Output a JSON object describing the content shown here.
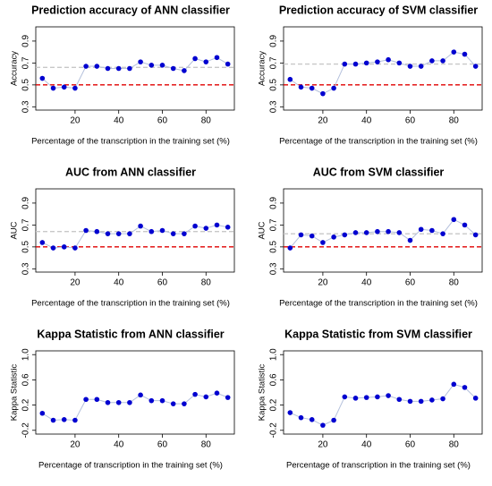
{
  "chart_data": [
    {
      "type": "line",
      "title": "Prediction accuracy of ANN classifier",
      "xlabel": "Percentage of the transcription in the training set (%)",
      "ylabel": "Accuracy",
      "x": [
        5,
        10,
        15,
        20,
        25,
        30,
        35,
        40,
        45,
        50,
        55,
        60,
        65,
        70,
        75,
        80,
        85,
        90
      ],
      "series": [
        {
          "color": "#0000d0",
          "values": [
            0.56,
            0.47,
            0.48,
            0.47,
            0.67,
            0.67,
            0.65,
            0.65,
            0.65,
            0.71,
            0.68,
            0.68,
            0.65,
            0.63,
            0.74,
            0.71,
            0.75,
            0.69
          ]
        }
      ],
      "xlim": [
        2,
        93
      ],
      "xticks": [
        20,
        40,
        60,
        80
      ],
      "ylim": [
        0.27,
        1.03
      ],
      "yticks": [
        0.3,
        0.5,
        0.7,
        0.9
      ],
      "hlines": [
        {
          "value": 0.66,
          "color": "#c8c8c8"
        },
        {
          "value": 0.5,
          "color": "#e00000"
        }
      ]
    },
    {
      "type": "line",
      "title": "Prediction accuracy of SVM classifier",
      "xlabel": "Percentage of the transcription in the training set (%)",
      "ylabel": "Accuracy",
      "x": [
        5,
        10,
        15,
        20,
        25,
        30,
        35,
        40,
        45,
        50,
        55,
        60,
        65,
        70,
        75,
        80,
        85,
        90
      ],
      "series": [
        {
          "color": "#0000d0",
          "values": [
            0.55,
            0.48,
            0.47,
            0.42,
            0.47,
            0.69,
            0.69,
            0.7,
            0.71,
            0.73,
            0.7,
            0.67,
            0.67,
            0.72,
            0.72,
            0.8,
            0.78,
            0.67
          ]
        }
      ],
      "xlim": [
        2,
        93
      ],
      "xticks": [
        20,
        40,
        60,
        80
      ],
      "ylim": [
        0.27,
        1.03
      ],
      "yticks": [
        0.3,
        0.5,
        0.7,
        0.9
      ],
      "hlines": [
        {
          "value": 0.69,
          "color": "#c8c8c8"
        },
        {
          "value": 0.5,
          "color": "#e00000"
        }
      ]
    },
    {
      "type": "line",
      "title": "AUC from ANN classifier",
      "xlabel": "Percentage of the transcription in the training set (%)",
      "ylabel": "AUC",
      "x": [
        5,
        10,
        15,
        20,
        25,
        30,
        35,
        40,
        45,
        50,
        55,
        60,
        65,
        70,
        75,
        80,
        85,
        90
      ],
      "series": [
        {
          "color": "#0000d0",
          "values": [
            0.54,
            0.49,
            0.5,
            0.49,
            0.65,
            0.64,
            0.62,
            0.62,
            0.62,
            0.69,
            0.64,
            0.65,
            0.62,
            0.62,
            0.69,
            0.67,
            0.7,
            0.68
          ]
        }
      ],
      "xlim": [
        2,
        93
      ],
      "xticks": [
        20,
        40,
        60,
        80
      ],
      "ylim": [
        0.27,
        1.03
      ],
      "yticks": [
        0.3,
        0.5,
        0.7,
        0.9
      ],
      "hlines": [
        {
          "value": 0.64,
          "color": "#c8c8c8"
        },
        {
          "value": 0.5,
          "color": "#e00000"
        }
      ]
    },
    {
      "type": "line",
      "title": "AUC from SVM classifier",
      "xlabel": "Percentage of the transcription in the training set (%)",
      "ylabel": "AUC",
      "x": [
        5,
        10,
        15,
        20,
        25,
        30,
        35,
        40,
        45,
        50,
        55,
        60,
        65,
        70,
        75,
        80,
        85,
        90
      ],
      "series": [
        {
          "color": "#0000d0",
          "values": [
            0.49,
            0.61,
            0.6,
            0.54,
            0.59,
            0.61,
            0.63,
            0.63,
            0.64,
            0.64,
            0.63,
            0.56,
            0.66,
            0.65,
            0.62,
            0.75,
            0.7,
            0.61
          ]
        }
      ],
      "xlim": [
        2,
        93
      ],
      "xticks": [
        20,
        40,
        60,
        80
      ],
      "ylim": [
        0.27,
        1.03
      ],
      "yticks": [
        0.3,
        0.5,
        0.7,
        0.9
      ],
      "hlines": [
        {
          "value": 0.62,
          "color": "#c8c8c8"
        },
        {
          "value": 0.5,
          "color": "#e00000"
        }
      ]
    },
    {
      "type": "line",
      "title": "Kappa Statistic from ANN classifier",
      "xlabel": "Percentage of transcription in the training set (%)",
      "ylabel": "Kappa Statistic",
      "x": [
        5,
        10,
        15,
        20,
        25,
        30,
        35,
        40,
        45,
        50,
        55,
        60,
        65,
        70,
        75,
        80,
        85,
        90
      ],
      "series": [
        {
          "color": "#0000d0",
          "values": [
            0.07,
            -0.04,
            -0.03,
            -0.04,
            0.29,
            0.29,
            0.24,
            0.24,
            0.24,
            0.36,
            0.27,
            0.27,
            0.22,
            0.22,
            0.37,
            0.33,
            0.39,
            0.32
          ]
        }
      ],
      "xlim": [
        2,
        93
      ],
      "xticks": [
        20,
        40,
        60,
        80
      ],
      "ylim": [
        -0.26,
        1.06
      ],
      "yticks": [
        -0.2,
        0.2,
        0.6,
        {
          "value": 1,
          "label": "1.0"
        }
      ]
    },
    {
      "type": "line",
      "title": "Kappa Statistic from SVM classifier",
      "xlabel": "Percentage of transcription in the training set (%)",
      "ylabel": "Kappa Statistic",
      "x": [
        5,
        10,
        15,
        20,
        25,
        30,
        35,
        40,
        45,
        50,
        55,
        60,
        65,
        70,
        75,
        80,
        85,
        90
      ],
      "series": [
        {
          "color": "#0000d0",
          "values": [
            0.08,
            0.0,
            -0.03,
            -0.12,
            -0.04,
            0.33,
            0.31,
            0.32,
            0.33,
            0.35,
            0.29,
            0.26,
            0.26,
            0.28,
            0.3,
            0.53,
            0.48,
            0.31
          ]
        }
      ],
      "xlim": [
        2,
        93
      ],
      "xticks": [
        20,
        40,
        60,
        80
      ],
      "ylim": [
        -0.26,
        1.06
      ],
      "yticks": [
        -0.2,
        0.2,
        0.6,
        {
          "value": 1,
          "label": "1.0"
        }
      ]
    }
  ]
}
